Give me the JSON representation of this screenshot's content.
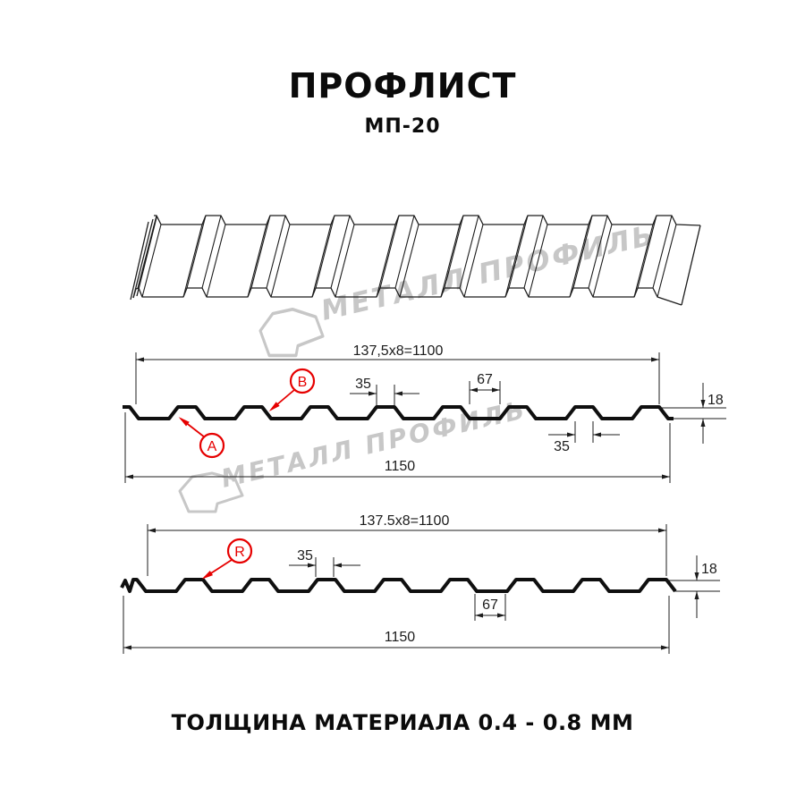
{
  "page": {
    "title": "ПРОФЛИСТ",
    "subtitle": "МП-20",
    "footer": "ТОЛЩИНА МАТЕРИАЛА 0.4 - 0.8 ММ"
  },
  "watermark": {
    "text": "МЕТАЛЛ ПРОФИЛЬ",
    "color": "#c7c7c7"
  },
  "colors": {
    "line": "#1c1c1c",
    "accent_red": "#e60000"
  },
  "section_top": {
    "span_label": "137,5x8=1100",
    "rib_top_label": "35",
    "valley_label": "67",
    "rib_bottom_label": "35",
    "height_label": "18",
    "width_label": "1150",
    "marker_a": "A",
    "marker_b": "B"
  },
  "section_bottom": {
    "span_label": "137.5x8=1100",
    "rib_top_label": "35",
    "valley_label": "67",
    "height_label": "18",
    "width_label": "1150",
    "marker_r": "R"
  }
}
